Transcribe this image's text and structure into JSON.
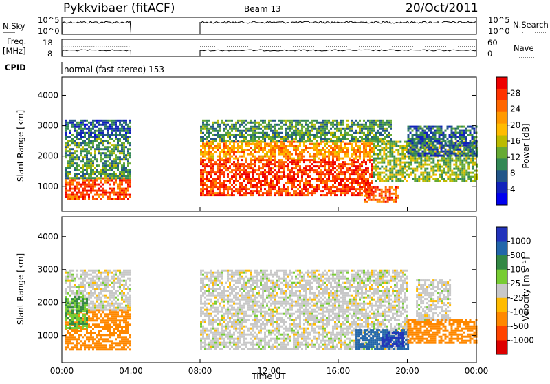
{
  "header": {
    "station": "Pykkvibaer (fitACF)",
    "beam": "Beam 13",
    "date": "20/Oct/2011"
  },
  "summary_panels": {
    "nsky_label": "N.Sky",
    "nsearch_label": "N.Search",
    "noise_ticks": [
      "10^5",
      "10^0"
    ],
    "freq_label_line1": "Freq.",
    "freq_label_line2": "[MHz]",
    "freq_ticks": [
      "18",
      "8"
    ],
    "nave_ticks": [
      "60",
      "0"
    ],
    "nave_label": "Nave",
    "cpid_label": "CPID",
    "cpid_text": "normal (fast stereo) 153"
  },
  "colorbars": {
    "power_label": "Power [dB]",
    "power_ticks": [
      "28",
      "24",
      "20",
      "16",
      "12",
      "8",
      "4"
    ],
    "power_colors": [
      "#ee0000",
      "#ff3300",
      "#ff6600",
      "#ff9900",
      "#ffbb00",
      "#bbbb00",
      "#66aa33",
      "#338855",
      "#225588",
      "#1122bb",
      "#0000ee"
    ],
    "velocity_label": "Velocity [m s⁻¹]",
    "velocity_ticks": [
      "1000",
      "500",
      "100",
      "25",
      "-25",
      "-100",
      "-500",
      "-1000"
    ],
    "velocity_colors": [
      "#2233bb",
      "#2266aa",
      "#338844",
      "#77cc33",
      "#c8c8c8",
      "#ffbb00",
      "#ff8800",
      "#ff4400",
      "#dd0000"
    ]
  },
  "chart_data": [
    {
      "type": "heatmap",
      "title": "",
      "ylabel": "Slant Range [km]",
      "xlabel": "",
      "x_ticks": [
        "00:00",
        "04:00",
        "08:00",
        "12:00",
        "16:00",
        "20:00",
        "00:00"
      ],
      "xlim_hours": [
        0,
        24
      ],
      "y_ticks": [
        1000,
        2000,
        3000,
        4000
      ],
      "ylim": [
        180,
        4600
      ],
      "quantity": "Power",
      "units": "dB",
      "color_range": [
        0,
        30
      ],
      "data_gap_hours": [
        4,
        8
      ],
      "regions": [
        {
          "t": [
            0.2,
            4.0
          ],
          "range": [
            600,
            1300
          ],
          "value": 26
        },
        {
          "t": [
            0.2,
            4.0
          ],
          "range": [
            1300,
            2600
          ],
          "value": 10
        },
        {
          "t": [
            0.2,
            4.0
          ],
          "range": [
            2600,
            3200
          ],
          "value": 6
        },
        {
          "t": [
            8.0,
            18.0
          ],
          "range": [
            700,
            1900
          ],
          "value": 27
        },
        {
          "t": [
            8.0,
            18.0
          ],
          "range": [
            1900,
            2500
          ],
          "value": 21
        },
        {
          "t": [
            8.0,
            19.0
          ],
          "range": [
            2500,
            3200
          ],
          "value": 10
        },
        {
          "t": [
            17.5,
            19.5
          ],
          "range": [
            500,
            1000
          ],
          "value": 25
        },
        {
          "t": [
            18.0,
            24.0
          ],
          "range": [
            1200,
            2500
          ],
          "value": 13
        },
        {
          "t": [
            20.0,
            24.0
          ],
          "range": [
            2000,
            3000
          ],
          "value": 7
        }
      ]
    },
    {
      "type": "heatmap",
      "title": "",
      "ylabel": "Slant Range [km]",
      "xlabel": "Time UT",
      "x_ticks": [
        "00:00",
        "04:00",
        "08:00",
        "12:00",
        "16:00",
        "20:00",
        "00:00"
      ],
      "xlim_hours": [
        0,
        24
      ],
      "y_ticks": [
        1000,
        2000,
        3000,
        4000
      ],
      "ylim": [
        180,
        4600
      ],
      "quantity": "Velocity",
      "units": "m s^-1",
      "color_range": [
        -1000,
        1000
      ],
      "data_gap_hours": [
        4,
        8
      ],
      "regions": [
        {
          "t": [
            0.2,
            4.0
          ],
          "range": [
            600,
            1800
          ],
          "value": -150
        },
        {
          "t": [
            0.2,
            4.0
          ],
          "range": [
            1800,
            3000
          ],
          "value": 0
        },
        {
          "t": [
            0.2,
            1.5
          ],
          "range": [
            1200,
            2200
          ],
          "value": 60
        },
        {
          "t": [
            8.0,
            20.0
          ],
          "range": [
            600,
            3000
          ],
          "value": 0
        },
        {
          "t": [
            17.0,
            20.0
          ],
          "range": [
            600,
            1200
          ],
          "value": 600
        },
        {
          "t": [
            18.5,
            19.8
          ],
          "range": [
            700,
            1100
          ],
          "value": 1000
        },
        {
          "t": [
            20.0,
            24.0
          ],
          "range": [
            800,
            1500
          ],
          "value": -200
        },
        {
          "t": [
            20.5,
            22.5
          ],
          "range": [
            1500,
            2700
          ],
          "value": 0
        }
      ]
    }
  ]
}
